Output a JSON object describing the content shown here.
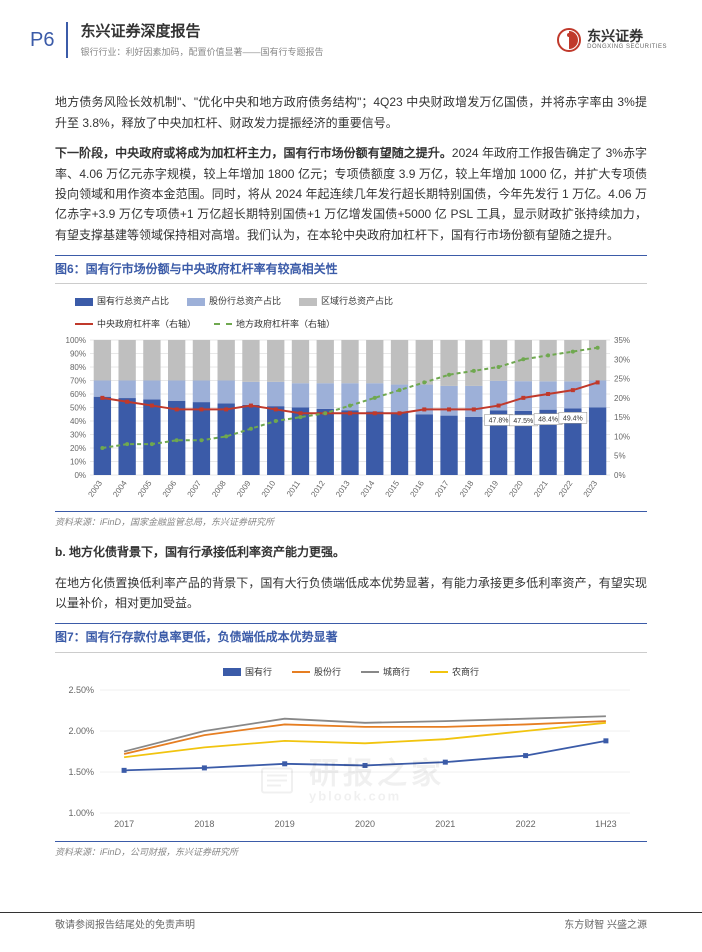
{
  "header": {
    "page_num": "P6",
    "title": "东兴证券深度报告",
    "subtitle": "银行行业：利好因素加码，配置价值显著——国有行专题报告",
    "logo_cn": "东兴证券",
    "logo_en": "DONGXING SECURITIES"
  },
  "para1": "地方债务风险长效机制\"、\"优化中央和地方政府债务结构\"；4Q23 中央财政增发万亿国债，并将赤字率由 3%提升至 3.8%，释放了中央加杠杆、财政发力提振经济的重要信号。",
  "para2_bold": "下一阶段，中央政府或将成为加杠杆主力，国有行市场份额有望随之提升。",
  "para2_rest": "2024 年政府工作报告确定了 3%赤字率、4.06 万亿元赤字规模，较上年增加 1800 亿元；专项债额度 3.9 万亿，较上年增加 1000 亿，并扩大专项债投向领域和用作资本金范围。同时，将从 2024 年起连续几年发行超长期特别国债，今年先发行 1 万亿。4.06 万亿赤字+3.9 万亿专项债+1 万亿超长期特别国债+1 万亿增发国债+5000 亿 PSL 工具，显示财政扩张持续加力，有望支撑基建等领域保持相对高增。我们认为，在本轮中央政府加杠杆下，国有行市场份额有望随之提升。",
  "fig6": {
    "title": "图6：国有行市场份额与中央政府杠杆率有较高相关性",
    "legend": {
      "s1": "国有行总资产占比",
      "s2": "股份行总资产占比",
      "s3": "区域行总资产占比",
      "l1": "中央政府杠杆率（右轴）",
      "l2": "地方政府杠杆率（右轴）"
    },
    "colors": {
      "state": "#3b5ba8",
      "joint": "#9db0d8",
      "regional": "#bfbfbf",
      "central_line": "#c0392b",
      "local_line": "#6fa84f",
      "grid": "#d0d0d0",
      "axis": "#666666"
    },
    "years": [
      "2003",
      "2004",
      "2005",
      "2006",
      "2007",
      "2008",
      "2009",
      "2010",
      "2011",
      "2012",
      "2013",
      "2014",
      "2015",
      "2016",
      "2017",
      "2018",
      "2019",
      "2020",
      "2021",
      "2022",
      "2023"
    ],
    "state_pct": [
      58,
      57,
      56,
      55,
      54,
      53,
      52,
      51,
      50,
      49,
      48,
      47,
      46,
      45,
      44,
      43,
      47.8,
      47.5,
      48.4,
      49.4,
      50
    ],
    "joint_pct": [
      12,
      13,
      14,
      15,
      16,
      17,
      17,
      18,
      18,
      19,
      20,
      21,
      21,
      22,
      22,
      23,
      22,
      22,
      21,
      20,
      20
    ],
    "regional_pct": [
      30,
      30,
      30,
      30,
      30,
      30,
      31,
      31,
      32,
      32,
      32,
      32,
      33,
      33,
      34,
      34,
      30.2,
      30.5,
      30.6,
      30.6,
      30
    ],
    "central_lev": [
      20,
      19,
      18,
      17,
      17,
      17,
      18,
      17,
      16,
      16,
      16,
      16,
      16,
      17,
      17,
      17,
      18,
      20,
      21,
      22,
      24
    ],
    "local_lev": [
      7,
      8,
      8,
      9,
      9,
      10,
      12,
      14,
      15,
      16,
      18,
      20,
      22,
      24,
      26,
      27,
      28,
      30,
      31,
      32,
      33
    ],
    "labels": [
      "47.8%",
      "47.5%",
      "48.4%",
      "49.4%"
    ],
    "y_left_max": 100,
    "y_left_step": 10,
    "y_right_max": 35,
    "y_right_step": 5,
    "source": "资料来源：iFinD，国家金融监管总局，东兴证券研究所"
  },
  "section_b": "b.   地方化债背景下，国有行承接低利率资产能力更强。",
  "para3": "在地方化债置换低利率产品的背景下，国有大行负债端低成本优势显著，有能力承接更多低利率资产，有望实现以量补价，相对更加受益。",
  "fig7": {
    "title": "图7：国有行存款付息率更低，负债端低成本优势显著",
    "legend": {
      "s1": "国有行",
      "s2": "股份行",
      "s3": "城商行",
      "s4": "农商行"
    },
    "colors": {
      "state": "#3b5ba8",
      "joint": "#e67e22",
      "city": "#888888",
      "rural": "#f1c40f",
      "grid": "#e0e0e0"
    },
    "years": [
      "2017",
      "2018",
      "2019",
      "2020",
      "2021",
      "2022",
      "1H23"
    ],
    "state": [
      1.52,
      1.55,
      1.6,
      1.58,
      1.62,
      1.7,
      1.88
    ],
    "joint": [
      1.72,
      1.95,
      2.08,
      2.05,
      2.05,
      2.08,
      2.12
    ],
    "city": [
      1.75,
      2.0,
      2.15,
      2.1,
      2.12,
      2.15,
      2.18
    ],
    "rural": [
      1.68,
      1.8,
      1.88,
      1.85,
      1.9,
      2.0,
      2.1
    ],
    "y_max": 2.5,
    "y_min": 1.0,
    "y_step": 0.5,
    "source": "资料来源：iFinD，公司财报，东兴证券研究所"
  },
  "footer": {
    "left": "敬请参阅报告结尾处的免责声明",
    "right": "东方财智 兴盛之源"
  },
  "watermark": "研报之家",
  "watermark_sub": "yblook.com"
}
